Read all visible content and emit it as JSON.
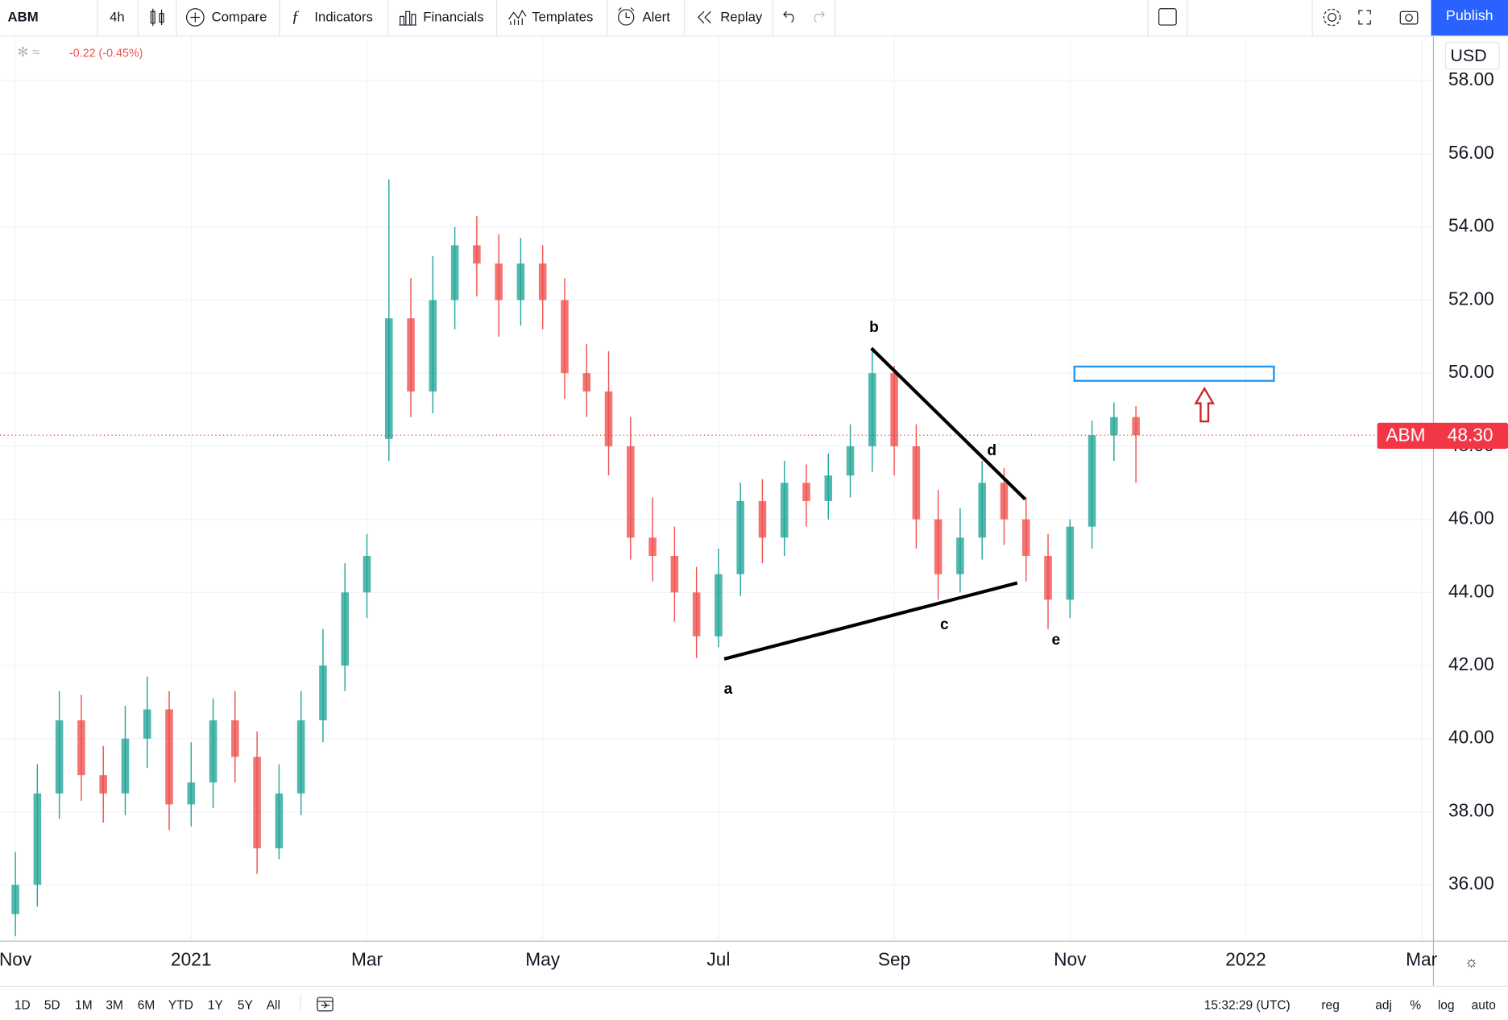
{
  "toolbar": {
    "symbol": "ABM",
    "interval": "4h",
    "items": [
      "Compare",
      "Indicators",
      "Financials",
      "Templates",
      "Alert",
      "Replay"
    ],
    "publish": "Publish"
  },
  "legend": {
    "change": "-0.22 (-0.45%)"
  },
  "currency": "USD",
  "bottom_bar": {
    "ranges": [
      "1D",
      "5D",
      "1M",
      "3M",
      "6M",
      "YTD",
      "1Y",
      "5Y",
      "All"
    ],
    "time": "15:32:29 (UTC)",
    "options": [
      "reg",
      "adj",
      "%",
      "log",
      "auto"
    ]
  },
  "chart_data": {
    "type": "candlestick",
    "symbol": "ABM",
    "up_color": "#26a69a",
    "down_color": "#ef5350",
    "x": [
      0,
      0.25,
      0.5,
      0.75,
      1,
      1.25,
      1.5,
      1.75,
      2,
      2.25,
      2.5,
      2.75,
      3,
      3.25,
      3.5,
      3.75,
      4,
      4.25,
      4.5,
      4.75,
      5,
      5.25,
      5.5,
      5.75,
      6,
      6.25,
      6.5,
      6.75,
      7,
      7.25,
      7.5,
      7.75,
      8,
      8.25,
      8.5,
      8.75,
      9,
      9.25,
      9.5,
      9.75,
      10,
      10.25,
      10.5,
      10.75,
      11,
      11.25,
      11.5,
      11.75,
      12,
      12.25,
      12.5,
      12.75
    ],
    "open": [
      35.2,
      36.0,
      38.5,
      40.5,
      39.0,
      38.5,
      40.0,
      40.8,
      38.2,
      38.8,
      40.5,
      39.5,
      37.0,
      38.5,
      40.5,
      42.0,
      44.0,
      48.2,
      51.5,
      49.5,
      52.0,
      53.5,
      53.0,
      52.0,
      53.0,
      52.0,
      50.0,
      49.5,
      48.0,
      45.5,
      45.0,
      44.0,
      42.8,
      44.5,
      46.5,
      45.5,
      47.0,
      46.5,
      47.2,
      48.0,
      50.0,
      48.0,
      46.0,
      44.5,
      45.5,
      47.0,
      46.0,
      45.0,
      43.8,
      45.8,
      48.3,
      48.8
    ],
    "high": [
      36.9,
      39.3,
      41.3,
      41.2,
      39.8,
      40.9,
      41.7,
      41.3,
      39.9,
      41.1,
      41.3,
      40.2,
      39.3,
      41.3,
      43.0,
      44.8,
      45.6,
      55.3,
      52.6,
      53.2,
      54.0,
      54.3,
      53.8,
      53.7,
      53.5,
      52.6,
      50.8,
      50.6,
      48.8,
      46.6,
      45.8,
      44.7,
      45.2,
      47.0,
      47.1,
      47.6,
      47.5,
      47.8,
      48.6,
      50.7,
      50.2,
      48.6,
      46.8,
      46.3,
      47.6,
      47.4,
      46.6,
      45.6,
      46.0,
      48.7,
      49.2,
      49.1
    ],
    "low": [
      34.6,
      35.4,
      37.8,
      38.3,
      37.7,
      37.9,
      39.2,
      37.5,
      37.6,
      38.1,
      38.8,
      36.3,
      36.7,
      37.9,
      39.9,
      41.3,
      43.3,
      47.6,
      48.8,
      48.9,
      51.2,
      52.1,
      51.0,
      51.3,
      51.2,
      49.3,
      48.8,
      47.2,
      44.9,
      44.3,
      43.2,
      42.2,
      42.5,
      43.9,
      44.8,
      45.0,
      45.8,
      46.0,
      46.6,
      47.3,
      47.2,
      45.2,
      43.8,
      44.0,
      44.9,
      45.3,
      44.3,
      43.0,
      43.3,
      45.2,
      47.6,
      47.0
    ],
    "close": [
      36.0,
      38.5,
      40.5,
      39.0,
      38.5,
      40.0,
      40.8,
      38.2,
      38.8,
      40.5,
      39.5,
      37.0,
      38.5,
      40.5,
      42.0,
      44.0,
      45.0,
      51.5,
      49.5,
      52.0,
      53.5,
      53.0,
      52.0,
      53.0,
      52.0,
      50.0,
      49.5,
      48.0,
      45.5,
      45.0,
      44.0,
      42.8,
      44.5,
      46.5,
      45.5,
      47.0,
      46.5,
      47.2,
      48.0,
      50.0,
      48.0,
      46.0,
      44.5,
      45.5,
      47.0,
      46.0,
      45.0,
      43.8,
      45.8,
      48.3,
      48.8,
      48.3
    ],
    "last_price": {
      "value": 48.3,
      "label": "48.30"
    },
    "last_price_color": "#f23645",
    "xlim": [
      -0.175,
      16.13
    ],
    "xticks": [
      {
        "value": 0,
        "label": "Nov"
      },
      {
        "value": 2,
        "label": "2021"
      },
      {
        "value": 4,
        "label": "Mar"
      },
      {
        "value": 6,
        "label": "May"
      },
      {
        "value": 8,
        "label": "Jul"
      },
      {
        "value": 10,
        "label": "Sep"
      },
      {
        "value": 12,
        "label": "Nov"
      },
      {
        "value": 14,
        "label": "2022"
      },
      {
        "value": 16,
        "label": "Mar"
      }
    ],
    "ylim": [
      34.47,
      59.21
    ],
    "yticks": [
      {
        "value": 36,
        "label": "36.00"
      },
      {
        "value": 38,
        "label": "38.00"
      },
      {
        "value": 40,
        "label": "40.00"
      },
      {
        "value": 42,
        "label": "42.00"
      },
      {
        "value": 44,
        "label": "44.00"
      },
      {
        "value": 46,
        "label": "46.00"
      },
      {
        "value": 48,
        "label": "48.00"
      },
      {
        "value": 50,
        "label": "50.00"
      },
      {
        "value": 52,
        "label": "52.00"
      },
      {
        "value": 54,
        "label": "54.00"
      },
      {
        "value": 56,
        "label": "56.00"
      },
      {
        "value": 58,
        "label": "58.00"
      }
    ],
    "grid": true,
    "trendlines": [
      {
        "x": [
          8.065,
          11.4
        ],
        "y": [
          42.18,
          44.26
        ]
      },
      {
        "x": [
          9.74,
          11.49
        ],
        "y": [
          50.68,
          46.55
        ]
      }
    ],
    "wave_labels": [
      {
        "label": "a",
        "x": 8.11,
        "y": 41.34
      },
      {
        "label": "b",
        "x": 9.77,
        "y": 51.24
      },
      {
        "label": "c",
        "x": 10.57,
        "y": 43.1
      },
      {
        "label": "d",
        "x": 11.11,
        "y": 47.87
      },
      {
        "label": "e",
        "x": 11.84,
        "y": 42.68
      }
    ],
    "target_zone": {
      "x": [
        12.05,
        14.32
      ],
      "y": [
        49.79,
        50.18
      ],
      "color": "#2196f3"
    },
    "arrow": {
      "x": 13.53,
      "y": [
        48.68,
        49.58
      ],
      "color": "#c62828"
    }
  }
}
